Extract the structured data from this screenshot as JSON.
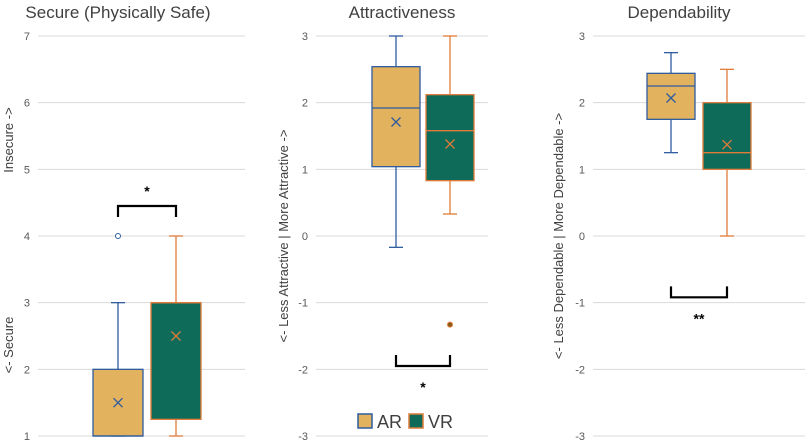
{
  "legend": {
    "entries": [
      {
        "label": "AR",
        "color": "#E3B25F"
      },
      {
        "label": "VR",
        "color": "#0E6B5A"
      }
    ]
  },
  "colors": {
    "ar_fill": "#E3B25F",
    "ar_stroke": "#2E5C9E",
    "vr_fill": "#0E6B5A",
    "vr_stroke": "#E07B39",
    "grid": "#D9D9D9",
    "text": "#404040"
  },
  "chart_data": [
    {
      "type": "box",
      "title": "Secure (Physically Safe)",
      "ylabel_top": "Insecure ->",
      "ylabel_bottom": "<- Secure",
      "ylim": [
        1,
        7
      ],
      "yticks": [
        1,
        2,
        3,
        4,
        5,
        6,
        7
      ],
      "grid": true,
      "series": [
        {
          "name": "AR",
          "min": 1,
          "q1": 1,
          "median": 1,
          "q3": 2,
          "max": 3,
          "mean": 1.5,
          "outliers": [
            4
          ]
        },
        {
          "name": "VR",
          "min": 1,
          "q1": 1.25,
          "median": 3,
          "q3": 3,
          "max": 4,
          "mean": 2.5,
          "outliers": []
        }
      ],
      "significance": {
        "label": "*",
        "value": 4.45
      }
    },
    {
      "type": "box",
      "title": "Attractiveness",
      "ylabel": "<- Less Attractive  |  More Attractive ->",
      "ylim": [
        -3,
        3
      ],
      "yticks": [
        -3,
        -2,
        -1,
        0,
        1,
        2,
        3
      ],
      "grid": true,
      "series": [
        {
          "name": "AR",
          "min": -0.17,
          "q1": 1.04,
          "median": 1.92,
          "q3": 2.54,
          "max": 3,
          "mean": 1.71,
          "outliers": []
        },
        {
          "name": "VR",
          "min": 0.33,
          "q1": 0.83,
          "median": 1.58,
          "q3": 2.12,
          "max": 3,
          "mean": 1.38,
          "outliers": [
            -1.33
          ]
        }
      ],
      "significance": {
        "label": "*",
        "value": -1.95
      }
    },
    {
      "type": "box",
      "title": "Dependability",
      "ylabel": "<- Less Dependable  |  More Dependable ->",
      "ylim": [
        -3,
        3
      ],
      "yticks": [
        -3,
        -2,
        -1,
        0,
        1,
        2,
        3
      ],
      "grid": true,
      "series": [
        {
          "name": "AR",
          "min": 1.25,
          "q1": 1.75,
          "median": 2.25,
          "q3": 2.44,
          "max": 2.75,
          "mean": 2.07,
          "outliers": []
        },
        {
          "name": "VR",
          "min": 0,
          "q1": 1,
          "median": 1.25,
          "q3": 2,
          "max": 2.5,
          "mean": 1.37,
          "outliers": []
        }
      ],
      "significance": {
        "label": "**",
        "value": -0.92
      }
    }
  ]
}
